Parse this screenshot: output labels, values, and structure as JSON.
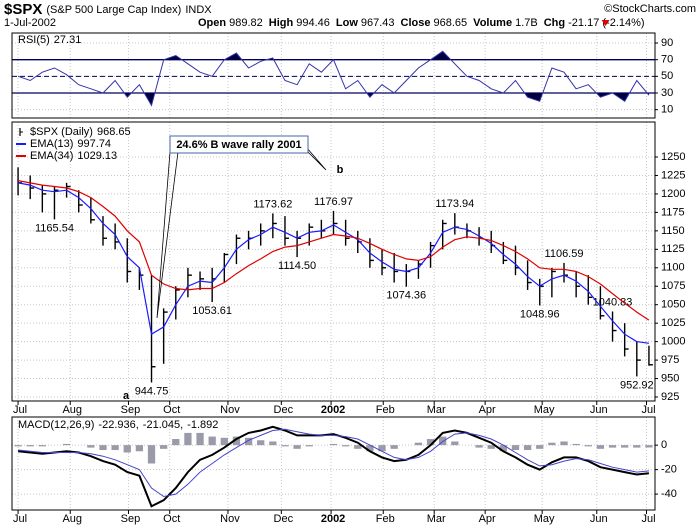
{
  "header": {
    "symbol": "$SPX",
    "description": "(S&P 500 Large Cap Index)",
    "exchange": "INDX",
    "date": "1-Jul-2002",
    "copyright": "©StockCharts.com",
    "quote": [
      {
        "label": "Open",
        "value": 989.82
      },
      {
        "label": "High",
        "value": 994.46
      },
      {
        "label": "Low",
        "value": 967.43
      },
      {
        "label": "Close",
        "value": 968.65
      },
      {
        "label": "Volume",
        "value": "1.7B"
      },
      {
        "label": "Chg",
        "value": "-21.17 (-2.14%)"
      }
    ]
  },
  "chart_data": [
    {
      "type": "line",
      "title": "RSI(5)",
      "xlim": [
        -0.5,
        52.5
      ],
      "ylim": [
        0,
        102
      ],
      "yticks": [
        10,
        30,
        50,
        70,
        90
      ],
      "grid": true,
      "overbought": 70,
      "oversold": 30,
      "midline": 50,
      "series": [
        {
          "color": "#3333aa",
          "fill": "#000040",
          "values": [
            50,
            45,
            55,
            60,
            52,
            40,
            35,
            30,
            45,
            25,
            40,
            15,
            70,
            75,
            65,
            55,
            50,
            70,
            78,
            60,
            68,
            72,
            45,
            40,
            65,
            55,
            70,
            35,
            45,
            25,
            40,
            30,
            45,
            60,
            70,
            80,
            65,
            50,
            45,
            35,
            30,
            45,
            25,
            20,
            60,
            55,
            35,
            40,
            25,
            30,
            20,
            45,
            27.31
          ]
        }
      ]
    },
    {
      "type": "hlc",
      "xlim": [
        -0.5,
        52.5
      ],
      "ylim": [
        919.6,
        1297.4
      ],
      "yticks": [
        925,
        950,
        975,
        1000,
        1025,
        1050,
        1075,
        1100,
        1125,
        1150,
        1175,
        1200,
        1225,
        1250
      ],
      "grid": true,
      "xticks": [
        {
          "value": 0,
          "label": "Jul"
        },
        {
          "value": 4.3,
          "label": "Aug"
        },
        {
          "value": 9.1,
          "label": "Sep"
        },
        {
          "value": 12.5,
          "label": "Oct"
        },
        {
          "value": 17.3,
          "label": "Nov"
        },
        {
          "value": 21.7,
          "label": "Dec"
        },
        {
          "value": 25.8,
          "label": "2002"
        },
        {
          "value": 30.1,
          "label": "Feb"
        },
        {
          "value": 34.3,
          "label": "Mar"
        },
        {
          "value": 38.5,
          "label": "Apr"
        },
        {
          "value": 43.2,
          "label": "May"
        },
        {
          "value": 47.7,
          "label": "Jun"
        },
        {
          "value": 51.8,
          "label": "Jul"
        }
      ],
      "series": [
        {
          "name": "$SPX (Daily)",
          "color": "#000000",
          "high": [
            1236,
            1225,
            1212,
            1210,
            1215,
            1205,
            1195,
            1170,
            1160,
            1140,
            1100,
            1090,
            1045,
            1075,
            1100,
            1095,
            1100,
            1120,
            1145,
            1150,
            1160,
            1173.62,
            1170,
            1150,
            1160,
            1165,
            1176.97,
            1165,
            1150,
            1140,
            1125,
            1120,
            1105,
            1110,
            1135,
            1165,
            1173.94,
            1160,
            1155,
            1150,
            1135,
            1130,
            1110,
            1085,
            1100,
            1106.59,
            1095,
            1090,
            1075,
            1040.83,
            1025,
            1000,
            994.46
          ],
          "low": [
            1198,
            1193,
            1175,
            1165.54,
            1195,
            1175,
            1160,
            1130,
            1125,
            1080,
            1070,
            944.75,
            970,
            1030,
            1060,
            1070,
            1053.61,
            1080,
            1105,
            1125,
            1130,
            1140,
            1130,
            1114.5,
            1130,
            1140,
            1145,
            1130,
            1120,
            1100,
            1090,
            1080,
            1074.36,
            1085,
            1100,
            1125,
            1145,
            1140,
            1130,
            1120,
            1105,
            1090,
            1070,
            1048.96,
            1060,
            1080,
            1060,
            1050,
            1030,
            1000,
            980,
            952.92,
            967.43
          ],
          "close": [
            1215,
            1208,
            1200,
            1205,
            1210,
            1185,
            1165,
            1140,
            1135,
            1095,
            1090,
            966,
            1040,
            1070,
            1090,
            1085,
            1085,
            1118,
            1140,
            1140,
            1150,
            1160,
            1140,
            1140,
            1155,
            1150,
            1160,
            1140,
            1135,
            1110,
            1100,
            1095,
            1095,
            1105,
            1130,
            1160,
            1155,
            1150,
            1140,
            1130,
            1110,
            1100,
            1080,
            1075,
            1095,
            1090,
            1075,
            1060,
            1035,
            1015,
            990,
            975,
            968.65
          ],
          "high_value_labels": [
            null,
            null,
            null,
            null,
            null,
            null,
            null,
            null,
            null,
            null,
            null,
            null,
            null,
            null,
            null,
            null,
            null,
            null,
            null,
            null,
            null,
            "1173.62",
            null,
            null,
            null,
            null,
            "1176.97",
            null,
            null,
            null,
            null,
            null,
            null,
            null,
            null,
            null,
            "1173.94",
            null,
            null,
            null,
            null,
            null,
            null,
            null,
            null,
            "1106.59",
            null,
            null,
            null,
            "1040.83",
            null,
            null,
            null
          ],
          "low_value_labels": [
            null,
            null,
            null,
            "1165.54",
            null,
            null,
            null,
            null,
            null,
            null,
            null,
            "944.75",
            null,
            null,
            null,
            null,
            "1053.61",
            null,
            null,
            null,
            null,
            null,
            null,
            "1114.50",
            null,
            null,
            null,
            null,
            null,
            null,
            null,
            null,
            "1074.36",
            null,
            null,
            null,
            null,
            null,
            null,
            null,
            null,
            null,
            null,
            "1048.96",
            null,
            null,
            null,
            null,
            null,
            null,
            null,
            "952.92",
            null
          ]
        },
        {
          "name": "EMA(13)",
          "color": "#1a1aff",
          "values": [
            1215,
            1212,
            1205,
            1203,
            1205,
            1195,
            1180,
            1160,
            1145,
            1115,
            1100,
            1010,
            1020,
            1050,
            1075,
            1082,
            1080,
            1100,
            1125,
            1138,
            1145,
            1155,
            1148,
            1140,
            1148,
            1150,
            1158,
            1148,
            1138,
            1120,
            1108,
            1098,
            1095,
            1100,
            1120,
            1148,
            1155,
            1152,
            1143,
            1133,
            1118,
            1105,
            1088,
            1075,
            1085,
            1090,
            1082,
            1068,
            1048,
            1028,
            1010,
            1000,
            997.74
          ]
        },
        {
          "name": "EMA(34)",
          "color": "#e00000",
          "values": [
            1218,
            1215,
            1212,
            1210,
            1208,
            1203,
            1195,
            1183,
            1170,
            1150,
            1135,
            1090,
            1078,
            1072,
            1070,
            1072,
            1072,
            1080,
            1092,
            1103,
            1112,
            1122,
            1128,
            1130,
            1135,
            1140,
            1145,
            1143,
            1140,
            1133,
            1125,
            1118,
            1112,
            1110,
            1115,
            1128,
            1138,
            1142,
            1140,
            1137,
            1130,
            1122,
            1112,
            1100,
            1098,
            1098,
            1095,
            1088,
            1078,
            1065,
            1052,
            1040,
            1029.13
          ]
        }
      ],
      "annotations": [
        {
          "text": "24.6% B wave rally 2001"
        },
        {
          "text": "a"
        },
        {
          "text": "b"
        }
      ]
    },
    {
      "type": "macd",
      "title": "MACD(12,26,9)",
      "value_separator": ",",
      "xlim": [
        -0.5,
        52.5
      ],
      "ylim": [
        -53,
        23
      ],
      "yticks": [
        -40,
        -20,
        0
      ],
      "grid": true,
      "xticks": [
        {
          "value": 0,
          "label": "Jul"
        },
        {
          "value": 4.3,
          "label": "Aug"
        },
        {
          "value": 9.1,
          "label": "Sep"
        },
        {
          "value": 12.5,
          "label": "Oct"
        },
        {
          "value": 17.3,
          "label": "Nov"
        },
        {
          "value": 21.7,
          "label": "Dec"
        },
        {
          "value": 25.8,
          "label": "2002"
        },
        {
          "value": 30.1,
          "label": "Feb"
        },
        {
          "value": 34.3,
          "label": "Mar"
        },
        {
          "value": 38.5,
          "label": "Apr"
        },
        {
          "value": 43.2,
          "label": "May"
        },
        {
          "value": 47.7,
          "label": "Jun"
        },
        {
          "value": 51.8,
          "label": "Jul"
        }
      ],
      "series": [
        {
          "color": "#000000",
          "style": "line",
          "width": 2,
          "values": [
            -5,
            -6,
            -7,
            -6,
            -5,
            -6,
            -9,
            -13,
            -16,
            -22,
            -25,
            -50,
            -45,
            -35,
            -22,
            -12,
            -8,
            -2,
            5,
            10,
            12,
            15,
            12,
            8,
            8,
            8,
            9,
            6,
            2,
            -5,
            -10,
            -13,
            -12,
            -8,
            0,
            10,
            12,
            10,
            6,
            2,
            -5,
            -10,
            -16,
            -20,
            -14,
            -10,
            -10,
            -13,
            -18,
            -20,
            -22,
            -24,
            -22.936
          ]
        },
        {
          "color": "#4444cc",
          "style": "line",
          "width": 1,
          "values": [
            -4,
            -5,
            -6,
            -6,
            -6,
            -6,
            -7,
            -9,
            -12,
            -16,
            -20,
            -35,
            -42,
            -40,
            -32,
            -22,
            -15,
            -8,
            -2,
            4,
            8,
            12,
            13,
            11,
            9,
            8,
            8,
            7,
            5,
            0,
            -5,
            -10,
            -12,
            -10,
            -5,
            3,
            9,
            10,
            8,
            5,
            0,
            -6,
            -12,
            -17,
            -16,
            -13,
            -11,
            -12,
            -15,
            -18,
            -20,
            -22,
            -21.045
          ]
        },
        {
          "color": "#9a9aa8",
          "style": "histogram",
          "values": [
            -1,
            -1,
            -1,
            0,
            1,
            0,
            -2,
            -4,
            -4,
            -6,
            -5,
            -15,
            -3,
            5,
            10,
            10,
            7,
            6,
            7,
            6,
            4,
            3,
            -1,
            -3,
            -1,
            0,
            1,
            -1,
            -3,
            -5,
            -5,
            -3,
            0,
            2,
            5,
            7,
            3,
            0,
            -2,
            -3,
            -5,
            -4,
            -4,
            -3,
            2,
            3,
            1,
            -1,
            -3,
            -2,
            -2,
            -2,
            -1.892
          ]
        }
      ]
    }
  ]
}
